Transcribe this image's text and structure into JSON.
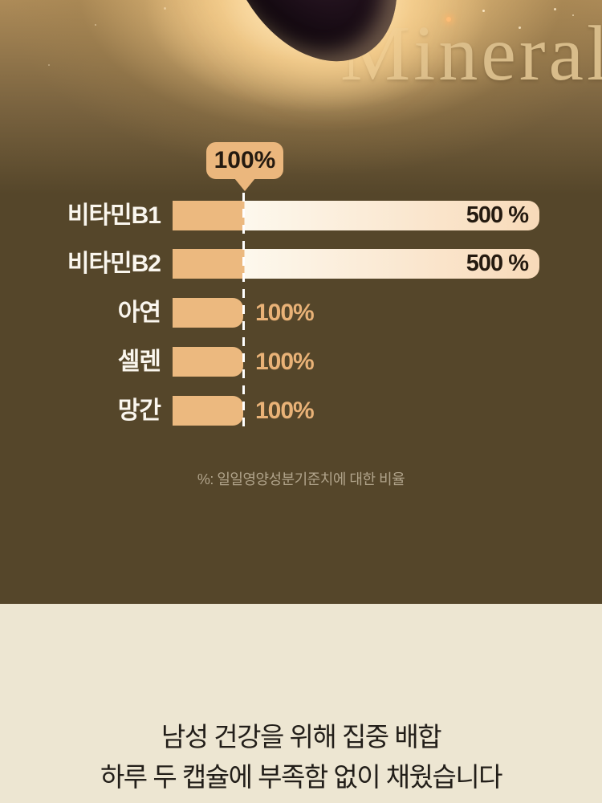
{
  "hero": {
    "title": "Mineral"
  },
  "chart": {
    "tooltip_label": "100%",
    "rows": [
      {
        "label": "비타민B1",
        "value": "500 %"
      },
      {
        "label": "비타민B2",
        "value": "500 %"
      },
      {
        "label": "아연",
        "value": "100%"
      },
      {
        "label": "셀렌",
        "value": "100%"
      },
      {
        "label": "망간",
        "value": "100%"
      }
    ],
    "footnote": "%: 일일영양성분기준치에 대한 비율"
  },
  "chart_data": {
    "type": "bar",
    "orientation": "horizontal",
    "title": "Mineral",
    "categories": [
      "비타민B1",
      "비타민B2",
      "아연",
      "셀렌",
      "망간"
    ],
    "values": [
      500,
      500,
      100,
      100,
      100
    ],
    "unit": "%",
    "value_labels": [
      "500 %",
      "500 %",
      "100%",
      "100%",
      "100%"
    ],
    "reference_line": {
      "value": 100,
      "label": "100%",
      "style": "white-dashed"
    },
    "xlim": [
      0,
      500
    ],
    "grid": false,
    "legend": "none",
    "footnote": "%: 일일영양성분기준치에 대한 비율"
  },
  "footer": {
    "line1": "남성 건강을 위해 집중 배합",
    "line2": "하루 두 캡슐에 부족함 없이 채웠습니다"
  },
  "colors": {
    "background_dark": "#55462A",
    "background_cream": "#EDE6D2",
    "hero_glow": "#F5D9A8",
    "bar_tan": "#ECB97F",
    "bar_gradient_start": "#FDF8ED",
    "bar_gradient_end": "#F8DAB9",
    "value_text_dark": "#241A10",
    "value_text_tan": "#E9B277",
    "label_white": "#FAF6EE",
    "mineral_gold": "#D8BC8A",
    "footnote_tan": "#B0A38A",
    "footer_text": "#221E19",
    "dash_line": "#FFFFFF"
  }
}
